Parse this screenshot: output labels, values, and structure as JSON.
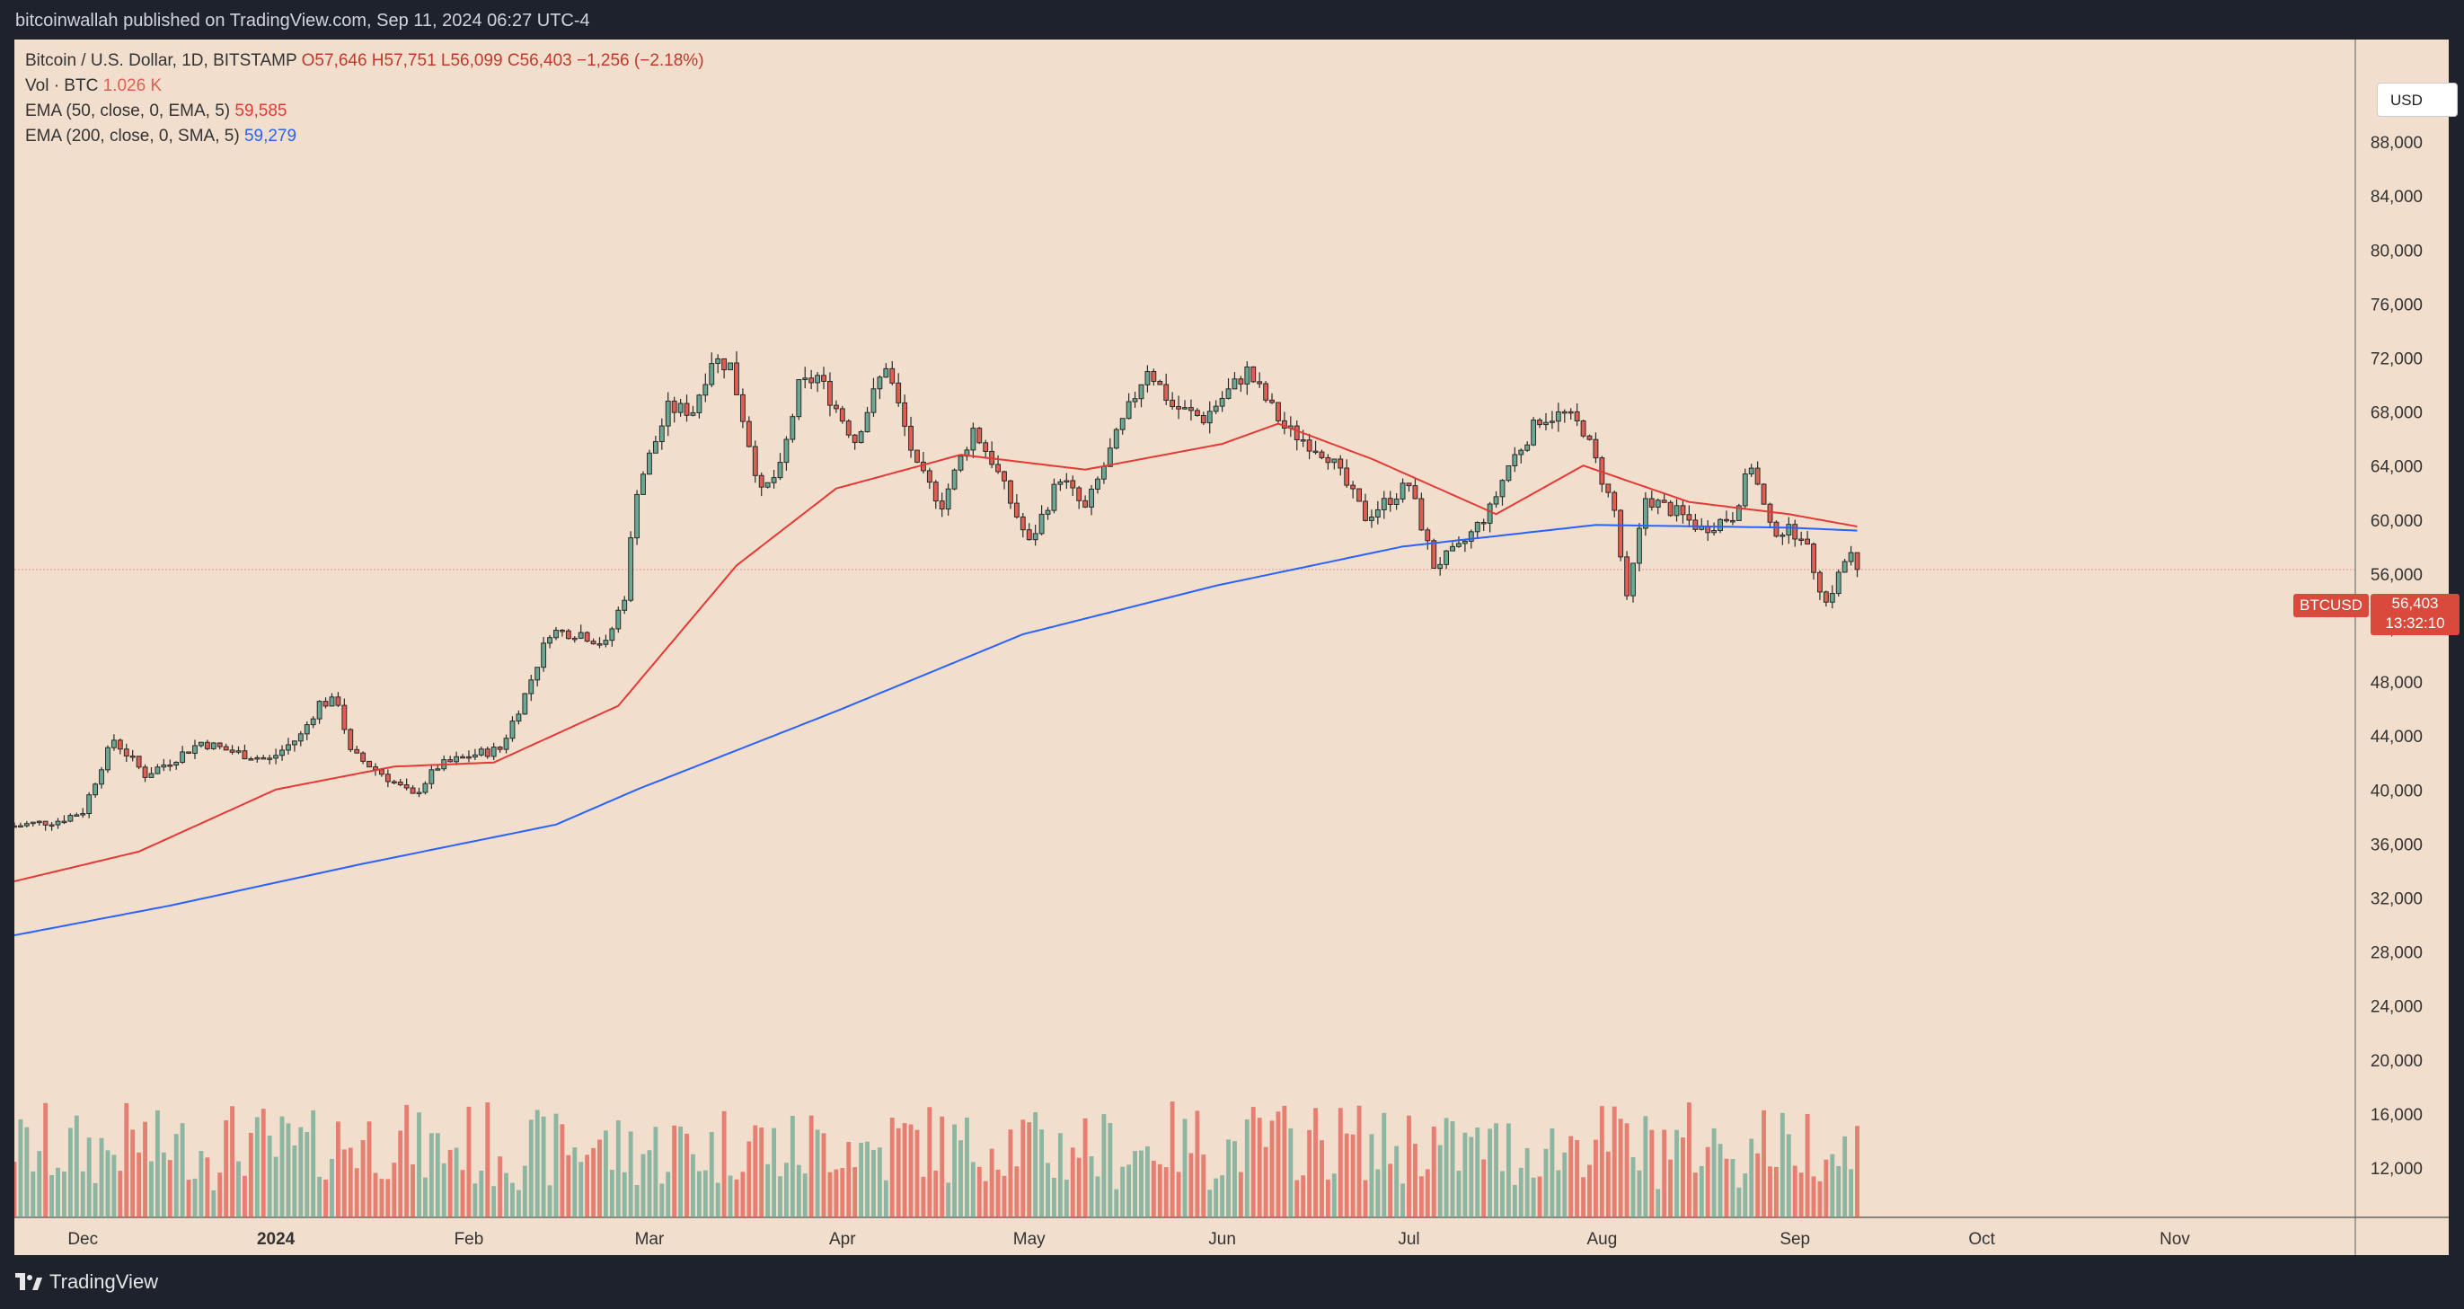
{
  "header": {
    "publisher": "bitcoinwallah published on TradingView.com, Sep 11, 2024 06:27 UTC-4"
  },
  "legend": {
    "symbol_label": "Bitcoin / U.S. Dollar, 1D, BITSTAMP",
    "ohlc": "O57,646  H57,751  L56,099  C56,403  −1,256 (−2.18%)",
    "vol_label": "Vol · BTC",
    "vol_value": "1.026 K",
    "ema50_label": "EMA (50, close, 0, EMA, 5)",
    "ema50_value": "59,585",
    "ema200_label": "EMA (200, close, 0, SMA, 5)",
    "ema200_value": "59,279"
  },
  "currency_button": "USD",
  "price_tag": {
    "symbol": "BTCUSD",
    "price": "56,403",
    "countdown": "13:32:10"
  },
  "footer": {
    "logo_text": "TradingView"
  },
  "colors": {
    "up": "#6aa893",
    "down": "#e15e52",
    "ema50": "#e53935",
    "ema200": "#2962ff",
    "background": "#f1decd"
  },
  "chart_data": {
    "type": "candlestick",
    "title": "Bitcoin / U.S. Dollar, 1D, BITSTAMP",
    "y_axis_ticks": [
      12000,
      16000,
      20000,
      24000,
      28000,
      32000,
      36000,
      40000,
      44000,
      48000,
      52000,
      56000,
      60000,
      64000,
      68000,
      72000,
      76000,
      80000,
      84000,
      88000
    ],
    "x_axis_labels": [
      {
        "label": "Dec",
        "date": "2023-12-01"
      },
      {
        "label": "2024",
        "date": "2024-01-01"
      },
      {
        "label": "Feb",
        "date": "2024-02-01"
      },
      {
        "label": "Mar",
        "date": "2024-03-01"
      },
      {
        "label": "Apr",
        "date": "2024-04-01"
      },
      {
        "label": "May",
        "date": "2024-05-01"
      },
      {
        "label": "Jun",
        "date": "2024-06-01"
      },
      {
        "label": "Jul",
        "date": "2024-07-01"
      },
      {
        "label": "Aug",
        "date": "2024-08-01"
      },
      {
        "label": "Sep",
        "date": "2024-09-01"
      },
      {
        "label": "Oct",
        "date": "2024-10-01"
      },
      {
        "label": "Nov",
        "date": "2024-11-01"
      }
    ],
    "last_price": 56403,
    "ylim": [
      10000,
      92000
    ],
    "x_range": [
      "2023-11-20",
      "2024-11-30"
    ],
    "close_anchors": [
      [
        "2023-11-20",
        37400
      ],
      [
        "2023-11-27",
        37800
      ],
      [
        "2023-12-01",
        38500
      ],
      [
        "2023-12-04",
        41900
      ],
      [
        "2023-12-06",
        43800
      ],
      [
        "2023-12-11",
        41200
      ],
      [
        "2023-12-15",
        42200
      ],
      [
        "2023-12-20",
        43600
      ],
      [
        "2023-12-25",
        42900
      ],
      [
        "2023-12-31",
        42300
      ],
      [
        "2024-01-05",
        44100
      ],
      [
        "2024-01-08",
        46500
      ],
      [
        "2024-01-11",
        46600
      ],
      [
        "2024-01-13",
        42800
      ],
      [
        "2024-01-18",
        41300
      ],
      [
        "2024-01-23",
        39600
      ],
      [
        "2024-01-27",
        41800
      ],
      [
        "2024-02-01",
        42600
      ],
      [
        "2024-02-06",
        43100
      ],
      [
        "2024-02-10",
        47100
      ],
      [
        "2024-02-14",
        51800
      ],
      [
        "2024-02-19",
        51700
      ],
      [
        "2024-02-23",
        50800
      ],
      [
        "2024-02-26",
        54500
      ],
      [
        "2024-02-28",
        62400
      ],
      [
        "2024-03-04",
        68300
      ],
      [
        "2024-03-08",
        68200
      ],
      [
        "2024-03-11",
        72000
      ],
      [
        "2024-03-14",
        71500
      ],
      [
        "2024-03-19",
        62000
      ],
      [
        "2024-03-22",
        63800
      ],
      [
        "2024-03-25",
        69900
      ],
      [
        "2024-03-28",
        70700
      ],
      [
        "2024-04-03",
        66000
      ],
      [
        "2024-04-08",
        71600
      ],
      [
        "2024-04-13",
        63800
      ],
      [
        "2024-04-17",
        61300
      ],
      [
        "2024-04-22",
        66800
      ],
      [
        "2024-04-25",
        64500
      ],
      [
        "2024-05-01",
        58300
      ],
      [
        "2024-05-06",
        63300
      ],
      [
        "2024-05-10",
        60800
      ],
      [
        "2024-05-15",
        66200
      ],
      [
        "2024-05-20",
        71400
      ],
      [
        "2024-05-24",
        68500
      ],
      [
        "2024-05-29",
        67600
      ],
      [
        "2024-06-05",
        71100
      ],
      [
        "2024-06-11",
        66900
      ],
      [
        "2024-06-18",
        64900
      ],
      [
        "2024-06-24",
        60300
      ],
      [
        "2024-07-01",
        62700
      ],
      [
        "2024-07-05",
        56700
      ],
      [
        "2024-07-09",
        57900
      ],
      [
        "2024-07-14",
        60800
      ],
      [
        "2024-07-17",
        64100
      ],
      [
        "2024-07-22",
        67600
      ],
      [
        "2024-07-26",
        67900
      ],
      [
        "2024-07-29",
        66800
      ],
      [
        "2024-08-03",
        60700
      ],
      [
        "2024-08-05",
        54000
      ],
      [
        "2024-08-08",
        61700
      ],
      [
        "2024-08-13",
        60600
      ],
      [
        "2024-08-17",
        59400
      ],
      [
        "2024-08-22",
        60400
      ],
      [
        "2024-08-25",
        64200
      ],
      [
        "2024-08-28",
        59400
      ],
      [
        "2024-09-02",
        59100
      ],
      [
        "2024-09-06",
        53900
      ],
      [
        "2024-09-09",
        57000
      ],
      [
        "2024-09-10",
        57646
      ],
      [
        "2024-09-11",
        56403
      ]
    ],
    "ema50_anchors": [
      [
        "2023-11-20",
        33300
      ],
      [
        "2023-12-10",
        35500
      ],
      [
        "2024-01-01",
        40100
      ],
      [
        "2024-01-20",
        41800
      ],
      [
        "2024-02-05",
        42100
      ],
      [
        "2024-02-25",
        46300
      ],
      [
        "2024-03-15",
        56700
      ],
      [
        "2024-03-31",
        62400
      ],
      [
        "2024-04-20",
        64900
      ],
      [
        "2024-05-10",
        63800
      ],
      [
        "2024-06-01",
        65700
      ],
      [
        "2024-06-10",
        67200
      ],
      [
        "2024-06-25",
        64600
      ],
      [
        "2024-07-15",
        60500
      ],
      [
        "2024-07-29",
        64100
      ],
      [
        "2024-08-15",
        61400
      ],
      [
        "2024-08-31",
        60500
      ],
      [
        "2024-09-11",
        59585
      ]
    ],
    "ema200_anchors": [
      [
        "2023-11-20",
        29300
      ],
      [
        "2023-12-15",
        31500
      ],
      [
        "2024-01-15",
        34600
      ],
      [
        "2024-02-15",
        37500
      ],
      [
        "2024-02-28",
        40100
      ],
      [
        "2024-03-31",
        45900
      ],
      [
        "2024-04-30",
        51600
      ],
      [
        "2024-05-31",
        55200
      ],
      [
        "2024-06-30",
        58100
      ],
      [
        "2024-07-31",
        59700
      ],
      [
        "2024-08-31",
        59500
      ],
      [
        "2024-09-11",
        59279
      ]
    ],
    "volume_series_visible": true
  }
}
